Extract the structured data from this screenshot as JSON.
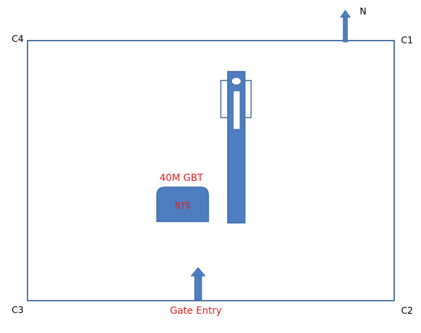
{
  "diagram": {
    "north_label": "N",
    "corners": {
      "c1": "C1",
      "c2": "C2",
      "c3": "C3",
      "c4": "C4"
    },
    "tower_label": "40M GBT",
    "bts_label": "BTS",
    "gate_label": "Gate Entry"
  },
  "colors": {
    "boundary": "#4a73a8",
    "fill": "#4f7ec0",
    "stroke": "#3a6aa5",
    "label_red": "#e21b1b"
  }
}
